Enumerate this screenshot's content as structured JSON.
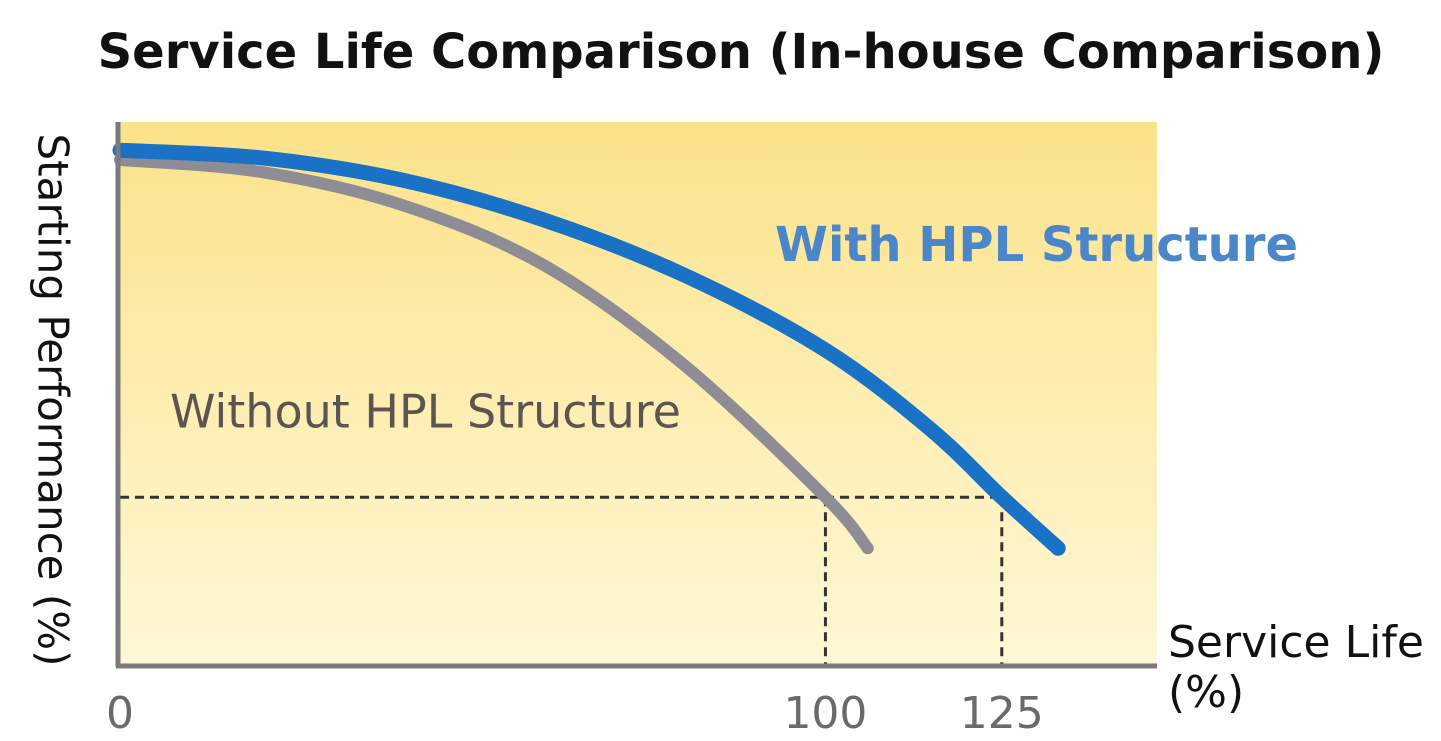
{
  "chart_data": {
    "type": "line",
    "title": "Service Life Comparison (In-house Comparison)",
    "xlabel": "Service Life (%)",
    "ylabel": "Starting Performance (%)",
    "series": [
      {
        "name": "Without HPL Structure",
        "color": "#8e8d96",
        "x": [
          0,
          20,
          40,
          60,
          80,
          100,
          106
        ],
        "values": [
          93,
          90.8,
          84.7,
          73.7,
          55.2,
          30.9,
          21.5
        ]
      },
      {
        "name": "With HPL Structure",
        "color": "#1a72c6",
        "x": [
          0,
          20,
          40,
          60,
          80,
          100,
          115,
          125,
          133
        ],
        "values": [
          94.8,
          93.4,
          89.3,
          82,
          71.8,
          58,
          43.3,
          30.9,
          21.5
        ]
      }
    ],
    "reference_y": 30.9,
    "xlim": [
      0,
      147
    ],
    "ylim": [
      0,
      100
    ],
    "xticks": [
      0,
      100,
      125
    ],
    "grid": false
  }
}
